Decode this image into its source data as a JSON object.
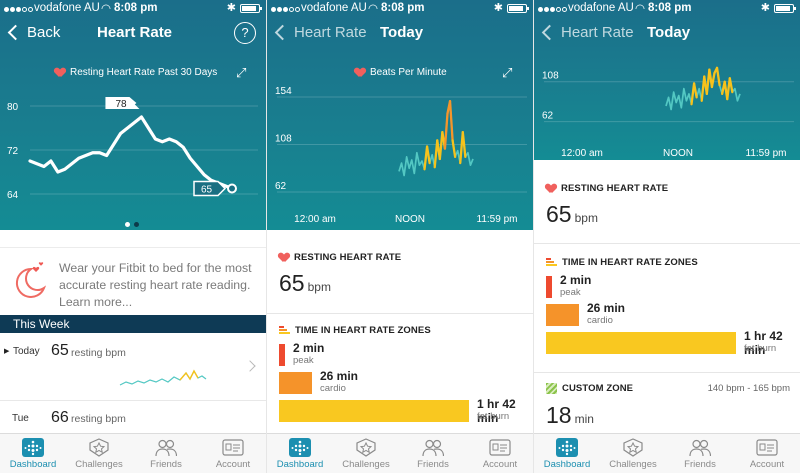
{
  "status": {
    "carrier": "vodafone AU",
    "time": "8:08 pm"
  },
  "screen1": {
    "back_label": "Back",
    "title": "Heart Rate",
    "help_label": "?",
    "chart_title": "Resting Heart Rate Past 30 Days",
    "chart_data": {
      "type": "line",
      "title": "Resting Heart Rate Past 30 Days",
      "y_ticks": [
        "80",
        "72",
        "64"
      ],
      "ylim": [
        62,
        82
      ],
      "values": [
        70,
        69.5,
        69,
        70,
        68,
        68.5,
        69.5,
        70.5,
        71,
        71.5,
        71.5,
        71,
        73,
        75,
        76,
        77,
        78,
        76,
        74,
        73.5,
        74,
        73.5,
        72.5,
        70.5,
        69,
        67.5,
        66.5,
        66,
        65.5,
        65
      ],
      "callouts": [
        {
          "label": "78"
        },
        {
          "label": "65"
        }
      ],
      "line_color": "#ffffff"
    },
    "tip_text": "Wear your Fitbit to bed for the most accurate resting heart rate reading. Learn more...",
    "week_header": "This Week",
    "days": [
      {
        "label": "Today",
        "value": "65",
        "unit": "resting bpm"
      },
      {
        "label": "Tue",
        "value": "66",
        "unit": "resting bpm"
      }
    ]
  },
  "screen2": {
    "back_label": "Heart Rate",
    "title": "Today",
    "chart_title": "Beats Per Minute",
    "chart_data": {
      "type": "line",
      "title": "Beats Per Minute",
      "y_ticks": [
        "154",
        "108",
        "62"
      ],
      "x_ticks": [
        "12:00 am",
        "NOON",
        "11:59 pm"
      ],
      "ylim": [
        62,
        154
      ],
      "values": [
        82,
        90,
        78,
        96,
        85,
        93,
        80,
        100,
        88,
        92,
        84,
        106,
        90,
        98,
        86,
        112,
        94,
        120,
        104,
        138,
        150,
        112,
        96,
        102,
        90,
        120,
        96,
        100,
        88,
        94
      ],
      "zone_colors": {
        "out_of_zone": "#53c8c3",
        "fat_burn": "#f6c21c",
        "cardio": "#f5952a"
      }
    },
    "resting": {
      "label": "RESTING HEART RATE",
      "value": "65",
      "unit": "bpm"
    },
    "zones_label": "TIME IN HEART RATE ZONES",
    "zones": [
      {
        "time": "2 min",
        "name": "peak",
        "color": "#ee4a2f",
        "share": 0.02
      },
      {
        "time": "26 min",
        "name": "cardio",
        "color": "#f5932a",
        "share": 0.2
      },
      {
        "time": "1 hr 42 min",
        "name": "fat burn",
        "color": "#f9c820",
        "share": 0.78
      }
    ]
  },
  "screen3": {
    "back_label": "Heart Rate",
    "title": "Today",
    "chart_data": {
      "type": "line",
      "y_ticks": [
        "108",
        "62"
      ],
      "x_ticks": [
        "12:00 am",
        "NOON",
        "11:59 pm"
      ],
      "ylim": [
        50,
        125
      ],
      "values": [
        80,
        90,
        76,
        96,
        84,
        92,
        78,
        100,
        86,
        94,
        82,
        106,
        90,
        100,
        86,
        114,
        94,
        122,
        102,
        118,
        124,
        104,
        94,
        108,
        88,
        112,
        96,
        100,
        86,
        94
      ]
    },
    "resting": {
      "label": "RESTING HEART RATE",
      "value": "65",
      "unit": "bpm"
    },
    "zones_label": "TIME IN HEART RATE ZONES",
    "zones": [
      {
        "time": "2 min",
        "name": "peak",
        "color": "#ee4a2f",
        "share": 0.02
      },
      {
        "time": "26 min",
        "name": "cardio",
        "color": "#f5932a",
        "share": 0.2
      },
      {
        "time": "1 hr 42 min",
        "name": "fat burn",
        "color": "#f9c820",
        "share": 0.78
      }
    ],
    "custom": {
      "label": "CUSTOM ZONE",
      "range": "140 bpm - 165 bpm",
      "value": "18",
      "unit": "min"
    }
  },
  "tabs": [
    {
      "label": "Dashboard",
      "icon": "dashboard-icon",
      "active": true
    },
    {
      "label": "Challenges",
      "icon": "star-badge-icon",
      "active": false
    },
    {
      "label": "Friends",
      "icon": "friends-icon",
      "active": false
    },
    {
      "label": "Account",
      "icon": "account-card-icon",
      "active": false
    }
  ],
  "colors": {
    "header_teal": "#197e8f",
    "week_header": "#0e3a55",
    "tab_active": "#1c8fb0"
  }
}
